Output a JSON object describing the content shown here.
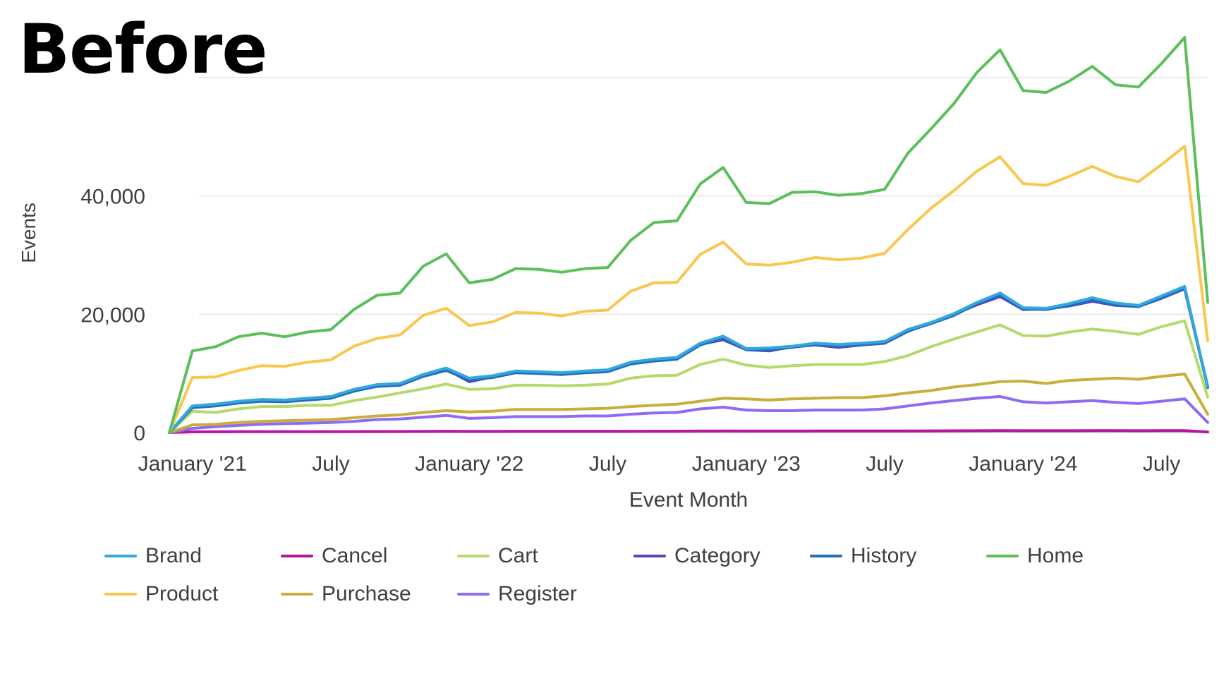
{
  "page": {
    "heading": "Before"
  },
  "chart_data": {
    "type": "line",
    "title": "",
    "xlabel": "Event Month",
    "ylabel": "Events",
    "ylim": [
      0,
      60000
    ],
    "yticks": [
      0,
      20000,
      40000
    ],
    "ytick_labels": [
      "0",
      "20,000",
      "40,000"
    ],
    "grid": true,
    "legend_position": "bottom",
    "x": [
      "2020-12",
      "2021-01",
      "2021-02",
      "2021-03",
      "2021-04",
      "2021-05",
      "2021-06",
      "2021-07",
      "2021-08",
      "2021-09",
      "2021-10",
      "2021-11",
      "2021-12",
      "2022-01",
      "2022-02",
      "2022-03",
      "2022-04",
      "2022-05",
      "2022-06",
      "2022-07",
      "2022-08",
      "2022-09",
      "2022-10",
      "2022-11",
      "2022-12",
      "2023-01",
      "2023-02",
      "2023-03",
      "2023-04",
      "2023-05",
      "2023-06",
      "2023-07",
      "2023-08",
      "2023-09",
      "2023-10",
      "2023-11",
      "2023-12",
      "2024-01",
      "2024-02",
      "2024-03",
      "2024-04",
      "2024-05",
      "2024-06",
      "2024-07",
      "2024-08",
      "2024-09"
    ],
    "xticks": [
      {
        "x": "2021-01",
        "label": "January '21"
      },
      {
        "x": "2021-07",
        "label": "July"
      },
      {
        "x": "2022-01",
        "label": "January '22"
      },
      {
        "x": "2022-07",
        "label": "July"
      },
      {
        "x": "2023-01",
        "label": "January '23"
      },
      {
        "x": "2023-07",
        "label": "July"
      },
      {
        "x": "2024-01",
        "label": "January '24"
      },
      {
        "x": "2024-07",
        "label": "July"
      }
    ],
    "series": [
      {
        "name": "Home",
        "color": "#5cbf5a",
        "values": [
          0,
          13800,
          14500,
          16200,
          16800,
          16200,
          17000,
          17400,
          20800,
          23200,
          23600,
          28100,
          30200,
          25300,
          25900,
          27700,
          27600,
          27100,
          27700,
          27900,
          32500,
          35500,
          35800,
          42000,
          44800,
          38900,
          38700,
          40600,
          40700,
          40100,
          40400,
          41100,
          47200,
          51300,
          55600,
          60900,
          64700,
          57800,
          57500,
          59400,
          61900,
          58800,
          58400,
          62400,
          66800,
          22000
        ]
      },
      {
        "name": "Product",
        "color": "#f9c74f",
        "values": [
          0,
          9300,
          9400,
          10500,
          11300,
          11200,
          11900,
          12300,
          14600,
          15900,
          16500,
          19800,
          21000,
          18100,
          18700,
          20300,
          20200,
          19700,
          20500,
          20700,
          23900,
          25300,
          25400,
          30100,
          32200,
          28500,
          28300,
          28800,
          29600,
          29200,
          29500,
          30300,
          34300,
          37900,
          40900,
          44200,
          46600,
          42100,
          41800,
          43300,
          45000,
          43300,
          42400,
          45300,
          48400,
          15500
        ]
      },
      {
        "name": "Brand",
        "color": "#34a8dd",
        "values": [
          0,
          4500,
          4800,
          5300,
          5600,
          5500,
          5800,
          6100,
          7300,
          8100,
          8300,
          9800,
          10900,
          9200,
          9600,
          10400,
          10300,
          10100,
          10400,
          10600,
          11900,
          12400,
          12700,
          15100,
          16300,
          14200,
          14300,
          14600,
          15100,
          14900,
          15100,
          15400,
          17400,
          18600,
          20100,
          22000,
          23600,
          21100,
          21000,
          21800,
          22800,
          21900,
          21500,
          23100,
          24700,
          7800
        ]
      },
      {
        "name": "History",
        "color": "#1f6fbf",
        "values": [
          0,
          4200,
          4500,
          5000,
          5300,
          5200,
          5500,
          5800,
          7000,
          7800,
          8000,
          9500,
          10500,
          8900,
          9300,
          10100,
          10000,
          9800,
          10100,
          10300,
          11600,
          12100,
          12400,
          14800,
          16000,
          14000,
          14000,
          14400,
          14900,
          14600,
          14900,
          15200,
          17200,
          18400,
          19800,
          21800,
          23300,
          20900,
          20800,
          21500,
          22500,
          21600,
          21300,
          22800,
          24400,
          7600
        ]
      },
      {
        "name": "Category",
        "color": "#5b3fbf",
        "values": [
          0,
          4300,
          4600,
          5100,
          5400,
          5300,
          5600,
          5900,
          7100,
          7900,
          8100,
          9600,
          10700,
          8600,
          9400,
          10200,
          10100,
          9900,
          10200,
          10400,
          11700,
          12200,
          12500,
          14900,
          15700,
          14000,
          13800,
          14500,
          14800,
          14400,
          14800,
          15100,
          17100,
          18500,
          20000,
          21600,
          23000,
          20800,
          20900,
          21400,
          22200,
          21500,
          21300,
          22700,
          24300,
          7700
        ]
      },
      {
        "name": "Cart",
        "color": "#b5d96a",
        "values": [
          0,
          3600,
          3400,
          4000,
          4400,
          4400,
          4600,
          4600,
          5400,
          6000,
          6700,
          7400,
          8200,
          7300,
          7400,
          8000,
          8000,
          7900,
          8000,
          8200,
          9200,
          9600,
          9700,
          11500,
          12400,
          11400,
          11000,
          11300,
          11500,
          11500,
          11500,
          12000,
          13000,
          14500,
          15800,
          17000,
          18200,
          16400,
          16300,
          17000,
          17500,
          17100,
          16600,
          17900,
          18900,
          6000
        ]
      },
      {
        "name": "Purchase",
        "color": "#c9ae3a",
        "values": [
          0,
          1300,
          1400,
          1700,
          1900,
          2000,
          2100,
          2200,
          2500,
          2800,
          3000,
          3400,
          3700,
          3500,
          3600,
          3900,
          3900,
          3900,
          4000,
          4100,
          4400,
          4600,
          4800,
          5300,
          5800,
          5700,
          5500,
          5700,
          5800,
          5900,
          5900,
          6200,
          6700,
          7100,
          7700,
          8100,
          8600,
          8700,
          8300,
          8800,
          9000,
          9200,
          9000,
          9500,
          9900,
          3100
        ]
      },
      {
        "name": "Register",
        "color": "#8f6af5",
        "values": [
          0,
          700,
          1000,
          1200,
          1400,
          1500,
          1600,
          1700,
          1900,
          2200,
          2300,
          2600,
          2900,
          2400,
          2500,
          2700,
          2700,
          2700,
          2800,
          2800,
          3100,
          3300,
          3400,
          4000,
          4300,
          3800,
          3700,
          3700,
          3800,
          3800,
          3800,
          4000,
          4500,
          5000,
          5400,
          5800,
          6100,
          5200,
          5000,
          5200,
          5400,
          5100,
          4900,
          5300,
          5700,
          1700
        ]
      },
      {
        "name": "Cancel",
        "color": "#b5179e",
        "values": [
          0,
          120,
          130,
          140,
          140,
          140,
          150,
          150,
          160,
          170,
          180,
          190,
          200,
          190,
          190,
          200,
          200,
          200,
          200,
          210,
          220,
          230,
          230,
          250,
          260,
          250,
          250,
          250,
          260,
          260,
          260,
          270,
          280,
          290,
          300,
          310,
          320,
          310,
          310,
          310,
          320,
          320,
          310,
          320,
          330,
          100
        ]
      }
    ],
    "legend": [
      {
        "name": "Brand",
        "color": "#34a8dd"
      },
      {
        "name": "Cancel",
        "color": "#b5179e"
      },
      {
        "name": "Cart",
        "color": "#b5d96a"
      },
      {
        "name": "Category",
        "color": "#5b3fbf"
      },
      {
        "name": "History",
        "color": "#1f6fbf"
      },
      {
        "name": "Home",
        "color": "#5cbf5a"
      },
      {
        "name": "Product",
        "color": "#f9c74f"
      },
      {
        "name": "Purchase",
        "color": "#c9ae3a"
      },
      {
        "name": "Register",
        "color": "#8f6af5"
      }
    ]
  }
}
